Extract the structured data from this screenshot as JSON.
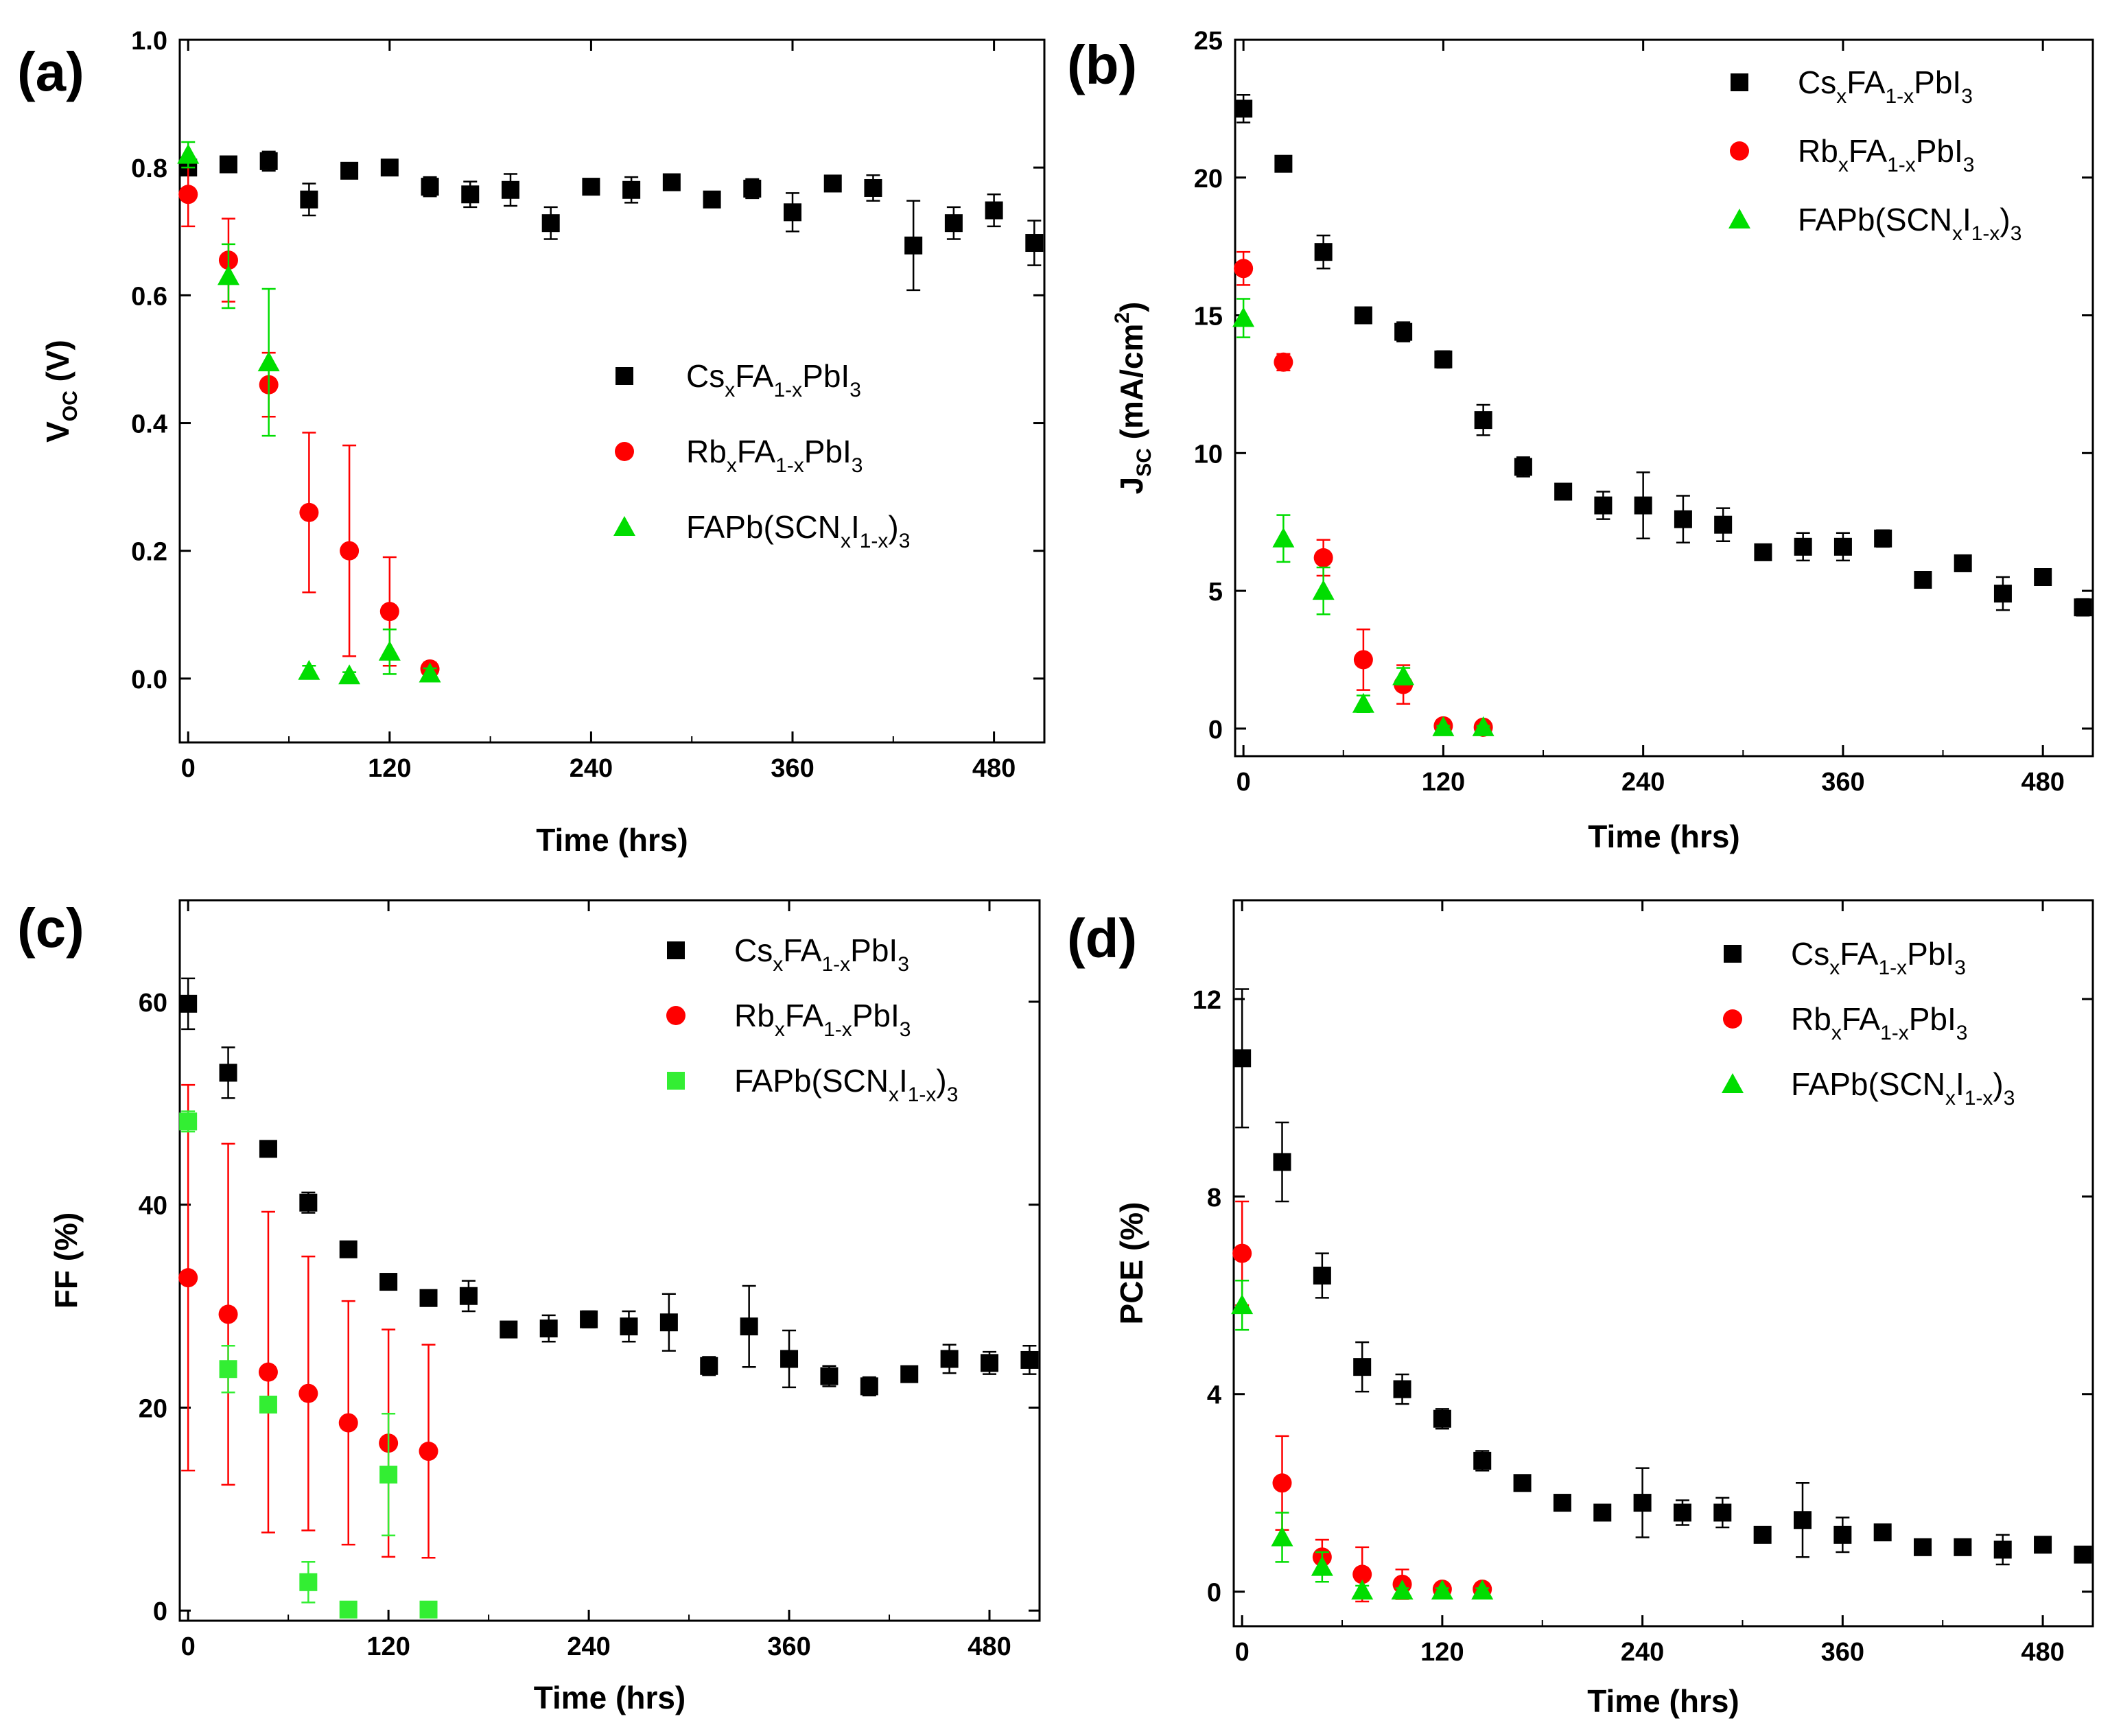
{
  "chart_data": [
    {
      "panel": "(a)",
      "type": "scatter",
      "xlabel": "Time (hrs)",
      "ylabel": {
        "main": "V",
        "sub": "OC",
        "rest": " (V)"
      },
      "xlim": [
        -5,
        510
      ],
      "ylim": [
        -0.1,
        1.0
      ],
      "xticks": [
        0,
        120,
        240,
        360,
        480
      ],
      "yticks": [
        "0.0",
        "0.2",
        "0.4",
        "0.6",
        "0.8",
        "1.0"
      ],
      "legend_position": "center-right",
      "series": [
        {
          "name": "CsxFA1-xPbI3",
          "label_parts": [
            [
              "Cs",
              ""
            ],
            [
              "x",
              "sub"
            ],
            [
              "FA",
              ""
            ],
            [
              "1-x",
              "sub"
            ],
            [
              "PbI",
              ""
            ],
            [
              "3",
              "sub"
            ]
          ],
          "color": "#000000",
          "marker": "square",
          "x": [
            0,
            24,
            48,
            72,
            96,
            120,
            144,
            168,
            192,
            216,
            240,
            264,
            288,
            312,
            336,
            360,
            384,
            408,
            432,
            456,
            480,
            504
          ],
          "y": [
            0.8,
            0.805,
            0.81,
            0.75,
            0.795,
            0.8,
            0.77,
            0.758,
            0.765,
            0.713,
            0.77,
            0.765,
            0.777,
            0.75,
            0.767,
            0.73,
            0.775,
            0.768,
            0.678,
            0.713,
            0.733,
            0.682
          ],
          "err": [
            0.01,
            0.008,
            0.015,
            0.025,
            0.01,
            0.008,
            0.015,
            0.02,
            0.025,
            0.025,
            0.008,
            0.02,
            0.01,
            0.01,
            0.015,
            0.03,
            0.01,
            0.02,
            0.07,
            0.025,
            0.025,
            0.035
          ]
        },
        {
          "name": "RbxFA1-xPbI3",
          "label_parts": [
            [
              "Rb",
              ""
            ],
            [
              "x",
              "sub"
            ],
            [
              "FA",
              ""
            ],
            [
              "1-x",
              "sub"
            ],
            [
              "PbI",
              ""
            ],
            [
              "3",
              "sub"
            ]
          ],
          "color": "#ff0000",
          "marker": "circle",
          "x": [
            0,
            24,
            48,
            72,
            96,
            120,
            144
          ],
          "y": [
            0.758,
            0.655,
            0.46,
            0.26,
            0.2,
            0.105,
            0.015
          ],
          "err": [
            0.05,
            0.065,
            0.05,
            0.125,
            0.165,
            0.085,
            0.01
          ]
        },
        {
          "name": "FAPb(SCNxI1-x)3",
          "label_parts": [
            [
              "FAPb(SCN",
              ""
            ],
            [
              "x",
              "sub"
            ],
            [
              "I",
              ""
            ],
            [
              "1-x",
              "sub"
            ],
            [
              ")",
              ""
            ],
            [
              "3",
              "sub"
            ]
          ],
          "color": "#00dd00",
          "marker": "triangle",
          "x": [
            0,
            24,
            48,
            72,
            96,
            120,
            144
          ],
          "y": [
            0.82,
            0.63,
            0.495,
            0.012,
            0.005,
            0.042,
            0.008
          ],
          "err": [
            0.02,
            0.05,
            0.115,
            0.008,
            0.005,
            0.035,
            0.008
          ]
        }
      ]
    },
    {
      "panel": "(b)",
      "type": "scatter",
      "xlabel": "Time (hrs)",
      "ylabel": {
        "main": "J",
        "sub": "SC",
        "rest": " (mA/cm",
        "sup": "2",
        "end": ")"
      },
      "xlim": [
        -5,
        510
      ],
      "ylim": [
        -1,
        25
      ],
      "xticks": [
        0,
        120,
        240,
        360,
        480
      ],
      "yticks": [
        "0",
        "5",
        "10",
        "15",
        "20",
        "25"
      ],
      "legend_position": "top-right",
      "series": [
        {
          "name": "CsxFA1-xPbI3",
          "label_parts": [
            [
              "Cs",
              ""
            ],
            [
              "x",
              "sub"
            ],
            [
              "FA",
              ""
            ],
            [
              "1-x",
              "sub"
            ],
            [
              "PbI",
              ""
            ],
            [
              "3",
              "sub"
            ]
          ],
          "color": "#000000",
          "marker": "square",
          "x": [
            0,
            24,
            48,
            72,
            96,
            120,
            144,
            168,
            192,
            216,
            240,
            264,
            288,
            312,
            336,
            360,
            384,
            408,
            432,
            456,
            480,
            504
          ],
          "y": [
            22.5,
            20.5,
            17.3,
            15.0,
            14.4,
            13.4,
            11.2,
            9.5,
            8.6,
            8.1,
            8.1,
            7.6,
            7.4,
            6.4,
            6.6,
            6.6,
            6.9,
            5.4,
            6.0,
            4.9,
            5.5,
            4.4
          ],
          "err": [
            0.5,
            0.15,
            0.6,
            0.15,
            0.35,
            0.3,
            0.55,
            0.35,
            0.1,
            0.5,
            1.2,
            0.85,
            0.6,
            0.15,
            0.5,
            0.5,
            0.3,
            0.15,
            0.2,
            0.6,
            0.15,
            0.3
          ]
        },
        {
          "name": "RbxFA1-xPbI3",
          "label_parts": [
            [
              "Rb",
              ""
            ],
            [
              "x",
              "sub"
            ],
            [
              "FA",
              ""
            ],
            [
              "1-x",
              "sub"
            ],
            [
              "PbI",
              ""
            ],
            [
              "3",
              "sub"
            ]
          ],
          "color": "#ff0000",
          "marker": "circle",
          "x": [
            0,
            24,
            48,
            72,
            96,
            120,
            144
          ],
          "y": [
            16.7,
            13.3,
            6.2,
            2.5,
            1.6,
            0.1,
            0.05
          ],
          "err": [
            0.6,
            0.3,
            0.65,
            1.1,
            0.7,
            0.1,
            0.05
          ]
        },
        {
          "name": "FAPb(SCNxI1-x)3",
          "label_parts": [
            [
              "FAPb(SCN",
              ""
            ],
            [
              "x",
              "sub"
            ],
            [
              "I",
              ""
            ],
            [
              "1-x",
              "sub"
            ],
            [
              ")",
              ""
            ],
            [
              "3",
              "sub"
            ]
          ],
          "color": "#00dd00",
          "marker": "triangle",
          "x": [
            0,
            24,
            48,
            72,
            96,
            120,
            144
          ],
          "y": [
            14.9,
            6.9,
            5.0,
            0.9,
            1.9,
            0.05,
            0.05
          ],
          "err": [
            0.7,
            0.85,
            0.85,
            0.3,
            0.3,
            0.05,
            0.05
          ]
        }
      ]
    },
    {
      "panel": "(c)",
      "type": "scatter",
      "xlabel": "Time (hrs)",
      "ylabel": {
        "main": "FF (%)"
      },
      "xlim": [
        -5,
        510
      ],
      "ylim": [
        -1,
        70
      ],
      "xticks": [
        0,
        120,
        240,
        360,
        480
      ],
      "yticks": [
        "0",
        "20",
        "40",
        "60"
      ],
      "legend_position": "top-right",
      "series": [
        {
          "name": "CsxFA1-xPbI3",
          "label_parts": [
            [
              "Cs",
              ""
            ],
            [
              "x",
              "sub"
            ],
            [
              "FA",
              ""
            ],
            [
              "1-x",
              "sub"
            ],
            [
              "PbI",
              ""
            ],
            [
              "3",
              "sub"
            ]
          ],
          "color": "#000000",
          "marker": "square",
          "x": [
            0,
            24,
            48,
            72,
            96,
            120,
            144,
            168,
            192,
            216,
            240,
            264,
            288,
            312,
            336,
            360,
            384,
            408,
            432,
            456,
            480,
            504
          ],
          "y": [
            59.8,
            53.0,
            45.5,
            40.2,
            35.6,
            32.4,
            30.8,
            31.0,
            27.7,
            27.8,
            28.7,
            28.0,
            28.4,
            24.1,
            28.0,
            24.8,
            23.1,
            22.1,
            23.3,
            24.8,
            24.4,
            24.7
          ],
          "err": [
            2.5,
            2.5,
            0.3,
            1.0,
            0.4,
            0.3,
            0.3,
            1.5,
            0.5,
            1.3,
            0.8,
            1.5,
            2.8,
            0.9,
            4.0,
            2.8,
            1.0,
            0.9,
            0.3,
            1.4,
            1.1,
            1.4
          ]
        },
        {
          "name": "RbxFA1-xPbI3",
          "label_parts": [
            [
              "Rb",
              ""
            ],
            [
              "x",
              "sub"
            ],
            [
              "FA",
              ""
            ],
            [
              "1-x",
              "sub"
            ],
            [
              "PbI",
              ""
            ],
            [
              "3",
              "sub"
            ]
          ],
          "color": "#ff0000",
          "marker": "circle",
          "x": [
            0,
            24,
            48,
            72,
            96,
            120,
            144
          ],
          "y": [
            32.8,
            29.2,
            23.5,
            21.4,
            18.5,
            16.5,
            15.7
          ],
          "err": [
            19.0,
            16.8,
            15.8,
            13.5,
            12.0,
            11.2,
            10.5
          ]
        },
        {
          "name": "FAPb(SCNxI1-x)3",
          "label_parts": [
            [
              "FAPb(SCN",
              ""
            ],
            [
              "x",
              "sub"
            ],
            [
              "I",
              ""
            ],
            [
              "1-x",
              "sub"
            ],
            [
              ")",
              ""
            ],
            [
              "3",
              "sub"
            ]
          ],
          "color": "#33ee33",
          "marker": "square",
          "x": [
            0,
            24,
            48,
            72,
            96,
            120,
            144
          ],
          "y": [
            48.2,
            23.8,
            20.3,
            2.8,
            0.1,
            13.4,
            0.1
          ],
          "err": [
            1.0,
            2.3,
            0.5,
            2.0,
            0.1,
            6.0,
            0.1
          ]
        }
      ]
    },
    {
      "panel": "(d)",
      "type": "scatter",
      "xlabel": "Time (hrs)",
      "ylabel": {
        "main": "PCE (%)"
      },
      "xlim": [
        -5,
        510
      ],
      "ylim": [
        -0.7,
        14
      ],
      "xticks": [
        0,
        120,
        240,
        360,
        480
      ],
      "yticks": [
        "0",
        "4",
        "8",
        "12"
      ],
      "legend_position": "top-right",
      "series": [
        {
          "name": "CsxFA1-xPbI3",
          "label_parts": [
            [
              "Cs",
              ""
            ],
            [
              "x",
              "sub"
            ],
            [
              "FA",
              ""
            ],
            [
              "1-x",
              "sub"
            ],
            [
              "PbI",
              ""
            ],
            [
              "3",
              "sub"
            ]
          ],
          "color": "#000000",
          "marker": "square",
          "x": [
            0,
            24,
            48,
            72,
            96,
            120,
            144,
            168,
            192,
            216,
            240,
            264,
            288,
            312,
            336,
            360,
            384,
            408,
            432,
            456,
            480,
            504
          ],
          "y": [
            10.8,
            8.7,
            6.4,
            4.55,
            4.1,
            3.5,
            2.65,
            2.2,
            1.8,
            1.6,
            1.8,
            1.6,
            1.6,
            1.15,
            1.45,
            1.15,
            1.2,
            0.9,
            0.9,
            0.85,
            0.95,
            0.75
          ],
          "err": [
            1.4,
            0.8,
            0.45,
            0.5,
            0.3,
            0.2,
            0.2,
            0.1,
            0.05,
            0.1,
            0.7,
            0.25,
            0.3,
            0.1,
            0.75,
            0.35,
            0.1,
            0.05,
            0.1,
            0.3,
            0.1,
            0.15
          ]
        },
        {
          "name": "RbxFA1-xPbI3",
          "label_parts": [
            [
              "Rb",
              ""
            ],
            [
              "x",
              "sub"
            ],
            [
              "FA",
              ""
            ],
            [
              "1-x",
              "sub"
            ],
            [
              "PbI",
              ""
            ],
            [
              "3",
              "sub"
            ]
          ],
          "color": "#ff0000",
          "marker": "circle",
          "x": [
            0,
            24,
            48,
            72,
            96,
            120,
            144
          ],
          "y": [
            6.85,
            2.2,
            0.7,
            0.35,
            0.15,
            0.05,
            0.05
          ],
          "err": [
            1.05,
            0.95,
            0.35,
            0.55,
            0.3,
            0.05,
            0.05
          ]
        },
        {
          "name": "FAPb(SCNxI1-x)3",
          "label_parts": [
            [
              "FAPb(SCN",
              ""
            ],
            [
              "x",
              "sub"
            ],
            [
              "I",
              ""
            ],
            [
              "1-x",
              "sub"
            ],
            [
              ")",
              ""
            ],
            [
              "3",
              "sub"
            ]
          ],
          "color": "#00dd00",
          "marker": "triangle",
          "x": [
            0,
            24,
            48,
            72,
            96,
            120,
            144
          ],
          "y": [
            5.8,
            1.1,
            0.5,
            0.02,
            0.02,
            0.02,
            0.02
          ],
          "err": [
            0.5,
            0.5,
            0.3,
            0.1,
            0.05,
            0.05,
            0.05
          ]
        }
      ]
    }
  ]
}
